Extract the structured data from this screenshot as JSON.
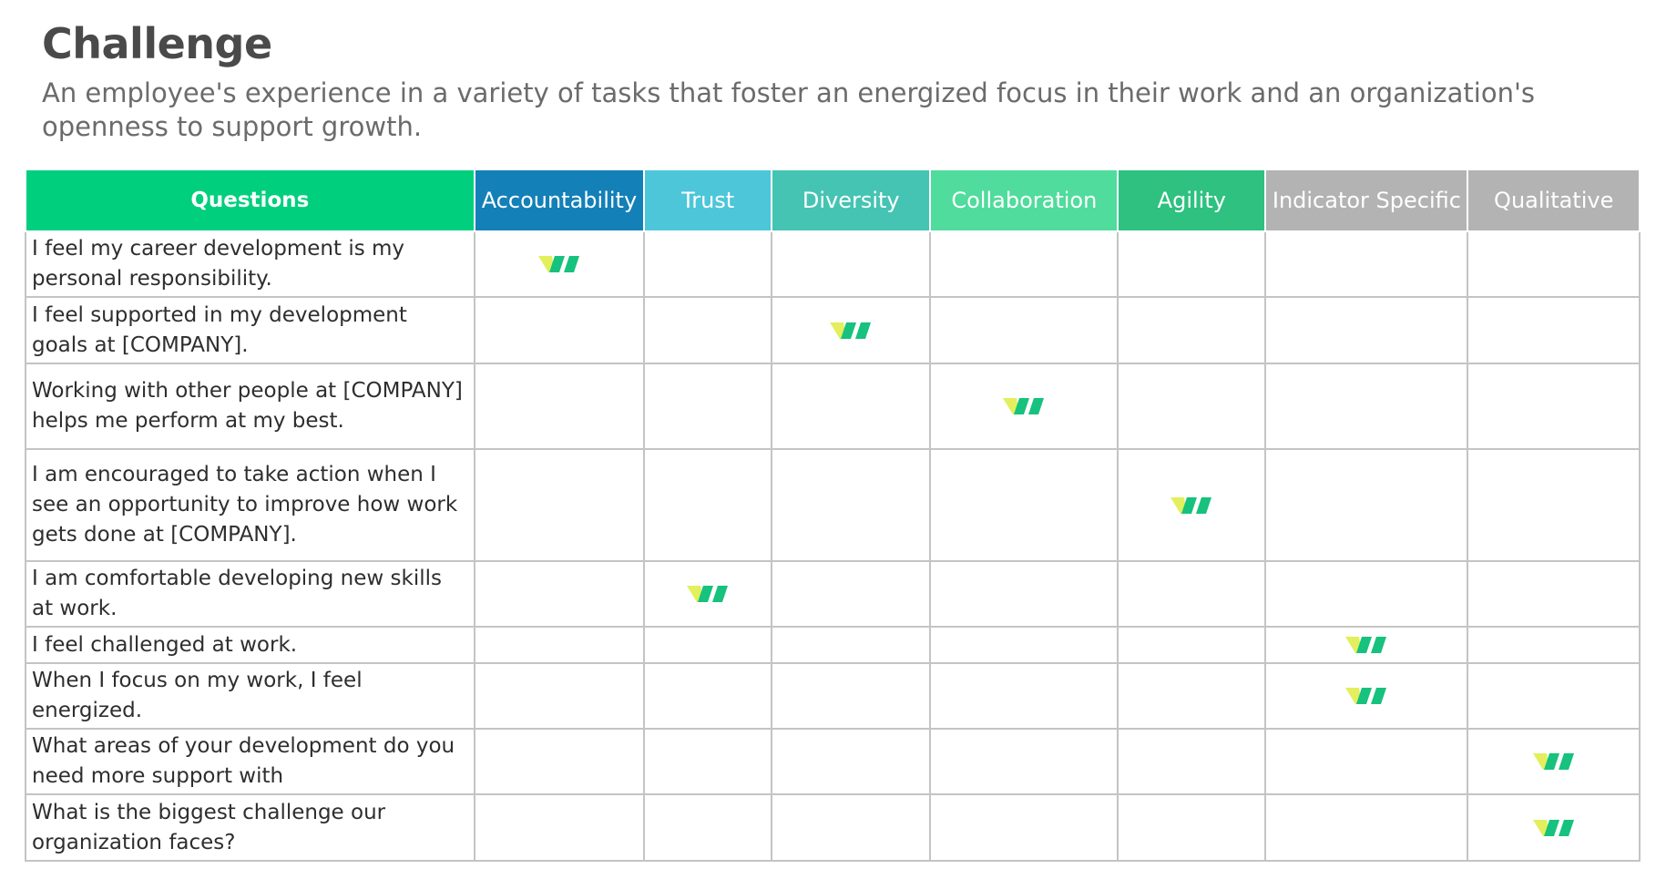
{
  "title": "Challenge",
  "subtitle": "An employee's experience in a variety of tasks that foster an energized focus in their work and an organization's openness to support growth.",
  "table": {
    "columns": [
      {
        "label": "Questions",
        "color": "#00cf7e"
      },
      {
        "label": "Accountability",
        "color": "#1380b8"
      },
      {
        "label": "Trust",
        "color": "#4dc6da"
      },
      {
        "label": "Diversity",
        "color": "#45c4b3"
      },
      {
        "label": "Collaboration",
        "color": "#4fdc9c"
      },
      {
        "label": "Agility",
        "color": "#2ec180"
      },
      {
        "label": "Indicator Specific",
        "color": "#b3b3b3"
      },
      {
        "label": "Qualitative",
        "color": "#b3b3b3"
      }
    ],
    "rows": [
      {
        "question": "I feel my career development is my personal responsibility.",
        "marked_column": 1
      },
      {
        "question": "I feel supported in my development goals at [COMPANY].",
        "marked_column": 3
      },
      {
        "question": "Working with other people at [COMPANY] helps me perform at my best.",
        "marked_column": 4
      },
      {
        "question": "I am encouraged to take action when I see an opportunity to improve how work gets done at [COMPANY].",
        "marked_column": 5
      },
      {
        "question": "I am comfortable developing new skills at work.",
        "marked_column": 2
      },
      {
        "question": "I feel challenged at work.",
        "marked_column": 6
      },
      {
        "question": "When I focus on my work, I feel energized.",
        "marked_column": 6
      },
      {
        "question": "What areas of your development do you need more support with",
        "marked_column": 7
      },
      {
        "question": "What is the biggest challenge our organization faces?",
        "marked_column": 7
      }
    ]
  },
  "mark_icon": "leaf-check-icon",
  "colors": {
    "mark_yellow": "#e3ef5c",
    "mark_green": "#16c27d",
    "grid_line": "#c4c4c4"
  }
}
